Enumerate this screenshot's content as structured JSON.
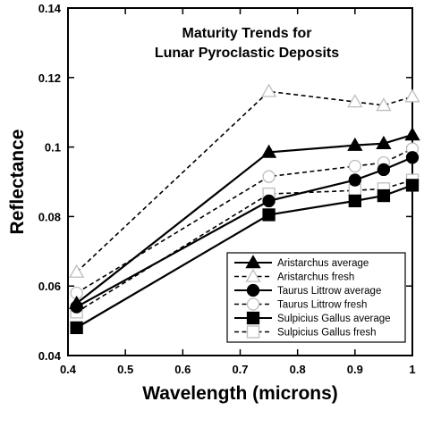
{
  "chart_data": {
    "type": "line",
    "title_lines": [
      "Maturity Trends for",
      "Lunar Pyroclastic Deposits"
    ],
    "xlabel": "Wavelength (microns)",
    "ylabel": "Reflectance",
    "xlim": [
      0.4,
      1.0
    ],
    "ylim": [
      0.04,
      0.14
    ],
    "xticks": [
      "0.4",
      "0.5",
      "0.6",
      "0.7",
      "0.8",
      "0.9",
      "1"
    ],
    "yticks": [
      "0.04",
      "0.06",
      "0.08",
      "0.1",
      "0.12",
      "0.14"
    ],
    "legend_position": "bottom-right",
    "grid": false,
    "series": [
      {
        "name": "Aristarchus average",
        "style": "solid",
        "marker": "triangle-filled",
        "x": [
          0.415,
          0.75,
          0.9,
          0.95,
          1.0
        ],
        "y": [
          0.055,
          0.0985,
          0.1005,
          0.101,
          0.1035
        ]
      },
      {
        "name": "Aristarchus fresh",
        "style": "dashed",
        "marker": "triangle-open",
        "x": [
          0.415,
          0.75,
          0.9,
          0.95,
          1.0
        ],
        "y": [
          0.064,
          0.116,
          0.113,
          0.112,
          0.1145
        ]
      },
      {
        "name": "Taurus Littrow average",
        "style": "solid",
        "marker": "circle-filled",
        "x": [
          0.415,
          0.75,
          0.9,
          0.95,
          1.0
        ],
        "y": [
          0.054,
          0.0845,
          0.0905,
          0.0935,
          0.097
        ]
      },
      {
        "name": "Taurus Littrow fresh",
        "style": "dashed",
        "marker": "circle-open",
        "x": [
          0.415,
          0.75,
          0.9,
          0.95,
          1.0
        ],
        "y": [
          0.058,
          0.0915,
          0.0945,
          0.0955,
          0.0995
        ]
      },
      {
        "name": "Sulpicius Gallus average",
        "style": "solid",
        "marker": "square-filled",
        "x": [
          0.415,
          0.75,
          0.9,
          0.95,
          1.0
        ],
        "y": [
          0.048,
          0.0805,
          0.0845,
          0.086,
          0.089
        ]
      },
      {
        "name": "Sulpicius Gallus fresh",
        "style": "dashed",
        "marker": "square-open",
        "x": [
          0.415,
          0.75,
          0.9,
          0.95,
          1.0
        ],
        "y": [
          0.0525,
          0.0865,
          0.0875,
          0.088,
          0.0905
        ]
      }
    ],
    "colors": {
      "line": "#000000",
      "open_marker_fill": "#ffffff",
      "open_marker_stroke": "#bdbdbd"
    }
  }
}
